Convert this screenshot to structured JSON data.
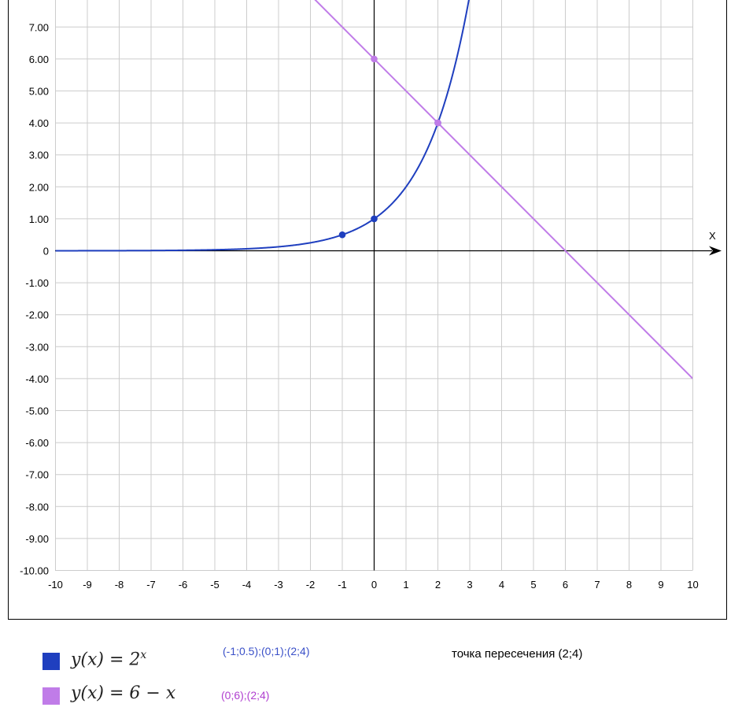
{
  "chart_data": {
    "type": "line",
    "xlim": [
      -10,
      10
    ],
    "ylim": [
      -10,
      7.5
    ],
    "x_ticks": [
      "-10",
      "-9",
      "-8",
      "-7",
      "-6",
      "-5",
      "-4",
      "-3",
      "-2",
      "-1",
      "0",
      "1",
      "2",
      "3",
      "4",
      "5",
      "6",
      "7",
      "8",
      "9",
      "10"
    ],
    "y_ticks": [
      "-10.00",
      "-9.00",
      "-8.00",
      "-7.00",
      "-6.00",
      "-5.00",
      "-4.00",
      "-3.00",
      "-2.00",
      "-1.00",
      "0",
      "1.00",
      "2.00",
      "3.00",
      "4.00",
      "5.00",
      "6.00",
      "7.00"
    ],
    "x_axis_label": "X",
    "grid": true,
    "series": [
      {
        "formula_lhs": "y(x) = 2",
        "formula_sup": "x",
        "function": "exp2",
        "color": "#1f3fbf",
        "points_label": "(-1;0.5);(0;1);(2;4)",
        "points": [
          [
            -1,
            0.5
          ],
          [
            0,
            1
          ],
          [
            2,
            4
          ]
        ]
      },
      {
        "formula_lhs": "y(x) = 6 − x",
        "formula_sup": "",
        "function": "linear",
        "slope": -1,
        "intercept": 6,
        "color": "#c07ce8",
        "points_label": "(0;6);(2;4)",
        "points": [
          [
            0,
            6
          ],
          [
            2,
            4
          ]
        ]
      }
    ],
    "intersection_note": "точка пересечения (2;4)"
  }
}
